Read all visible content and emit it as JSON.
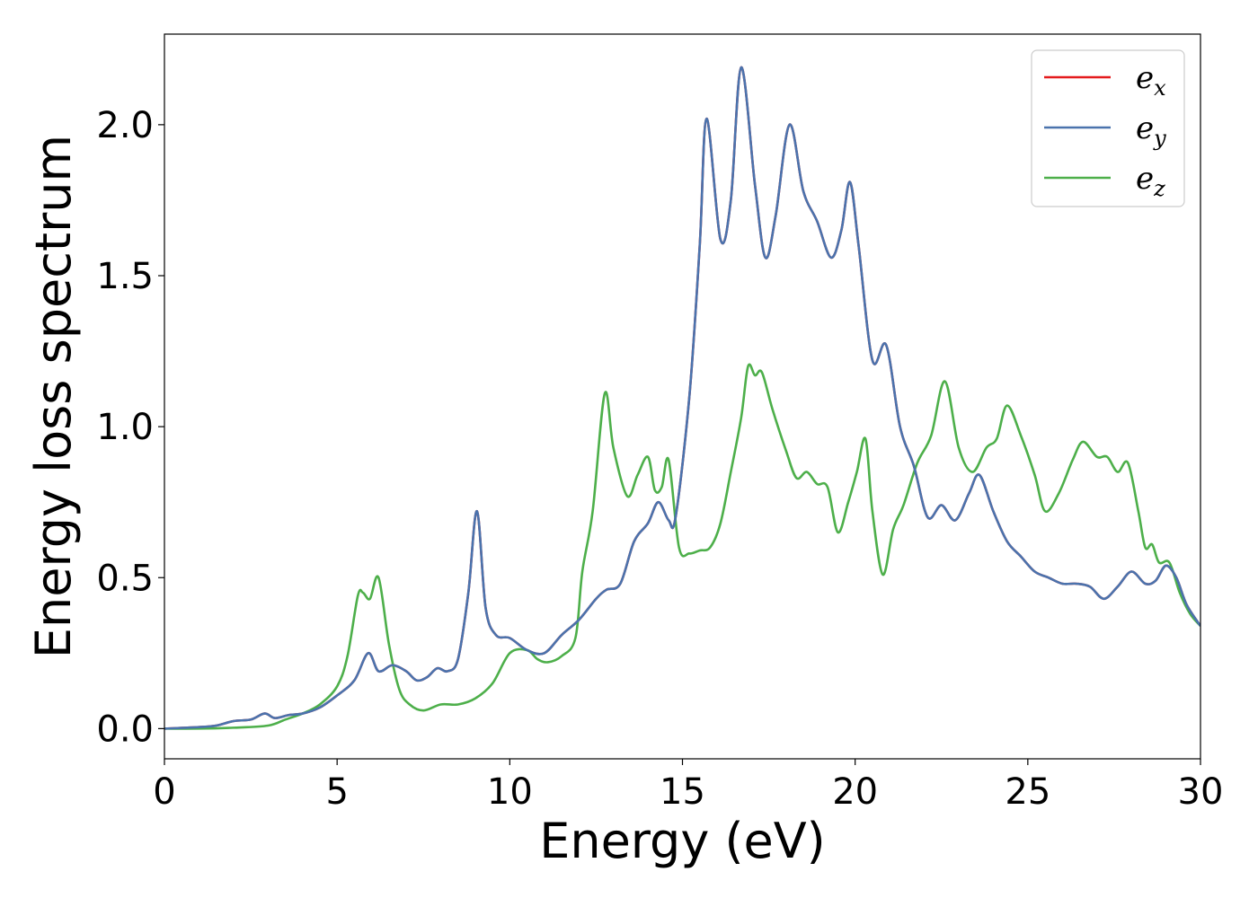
{
  "chart_data": {
    "type": "line",
    "xlabel": "Energy (eV)",
    "ylabel": "Energy loss spectrum",
    "xlim": [
      0,
      30
    ],
    "ylim": [
      -0.1,
      2.3
    ],
    "x_ticks": [
      "0",
      "5",
      "10",
      "15",
      "20",
      "25",
      "30"
    ],
    "y_ticks": [
      "0.0",
      "0.5",
      "1.0",
      "1.5",
      "2.0"
    ],
    "grid": false,
    "legend_position": "top-right",
    "series": [
      {
        "name": "e_x",
        "label_base": "e",
        "label_sub": "x",
        "color": "#e41a1c",
        "x": [
          0,
          1,
          1.5,
          2,
          2.5,
          2.9,
          3.2,
          3.6,
          4,
          4.5,
          5,
          5.5,
          5.9,
          6.2,
          6.6,
          7,
          7.3,
          7.6,
          7.9,
          8.2,
          8.5,
          8.8,
          9.05,
          9.3,
          9.6,
          10,
          10.5,
          11,
          11.5,
          12,
          12.5,
          12.8,
          13.2,
          13.6,
          14,
          14.3,
          14.6,
          14.8,
          15.2,
          15.5,
          15.7,
          16.1,
          16.4,
          16.7,
          17.1,
          17.4,
          17.7,
          18.1,
          18.5,
          18.9,
          19.3,
          19.6,
          19.85,
          20.1,
          20.5,
          20.9,
          21.3,
          21.7,
          22.1,
          22.5,
          22.9,
          23.3,
          23.6,
          24,
          24.4,
          24.8,
          25.2,
          25.6,
          26,
          26.4,
          26.8,
          27.2,
          27.6,
          28,
          28.4,
          28.7,
          29,
          29.3,
          29.6,
          30
        ],
        "values": [
          0,
          0.005,
          0.01,
          0.025,
          0.03,
          0.05,
          0.035,
          0.045,
          0.05,
          0.07,
          0.11,
          0.16,
          0.25,
          0.19,
          0.21,
          0.19,
          0.16,
          0.17,
          0.2,
          0.19,
          0.23,
          0.45,
          0.72,
          0.4,
          0.31,
          0.3,
          0.26,
          0.25,
          0.31,
          0.36,
          0.43,
          0.46,
          0.48,
          0.62,
          0.68,
          0.75,
          0.69,
          0.7,
          1.1,
          1.6,
          2.02,
          1.62,
          1.75,
          2.19,
          1.8,
          1.56,
          1.7,
          2.0,
          1.78,
          1.68,
          1.56,
          1.65,
          1.81,
          1.6,
          1.22,
          1.27,
          1.0,
          0.87,
          0.7,
          0.74,
          0.69,
          0.78,
          0.84,
          0.72,
          0.62,
          0.57,
          0.52,
          0.5,
          0.48,
          0.48,
          0.47,
          0.43,
          0.47,
          0.52,
          0.48,
          0.49,
          0.54,
          0.5,
          0.41,
          0.34
        ]
      },
      {
        "name": "e_y",
        "label_base": "e",
        "label_sub": "y",
        "color": "#4a73ad",
        "x": [
          0,
          1,
          1.5,
          2,
          2.5,
          2.9,
          3.2,
          3.6,
          4,
          4.5,
          5,
          5.5,
          5.9,
          6.2,
          6.6,
          7,
          7.3,
          7.6,
          7.9,
          8.2,
          8.5,
          8.8,
          9.05,
          9.3,
          9.6,
          10,
          10.5,
          11,
          11.5,
          12,
          12.5,
          12.8,
          13.2,
          13.6,
          14,
          14.3,
          14.6,
          14.8,
          15.2,
          15.5,
          15.7,
          16.1,
          16.4,
          16.7,
          17.1,
          17.4,
          17.7,
          18.1,
          18.5,
          18.9,
          19.3,
          19.6,
          19.85,
          20.1,
          20.5,
          20.9,
          21.3,
          21.7,
          22.1,
          22.5,
          22.9,
          23.3,
          23.6,
          24,
          24.4,
          24.8,
          25.2,
          25.6,
          26,
          26.4,
          26.8,
          27.2,
          27.6,
          28,
          28.4,
          28.7,
          29,
          29.3,
          29.6,
          30
        ],
        "values": [
          0,
          0.005,
          0.01,
          0.025,
          0.03,
          0.05,
          0.035,
          0.045,
          0.05,
          0.07,
          0.11,
          0.16,
          0.25,
          0.19,
          0.21,
          0.19,
          0.16,
          0.17,
          0.2,
          0.19,
          0.23,
          0.45,
          0.72,
          0.4,
          0.31,
          0.3,
          0.26,
          0.25,
          0.31,
          0.36,
          0.43,
          0.46,
          0.48,
          0.62,
          0.68,
          0.75,
          0.69,
          0.7,
          1.1,
          1.6,
          2.02,
          1.62,
          1.75,
          2.19,
          1.8,
          1.56,
          1.7,
          2.0,
          1.78,
          1.68,
          1.56,
          1.65,
          1.81,
          1.6,
          1.22,
          1.27,
          1.0,
          0.87,
          0.7,
          0.74,
          0.69,
          0.78,
          0.84,
          0.72,
          0.62,
          0.57,
          0.52,
          0.5,
          0.48,
          0.48,
          0.47,
          0.43,
          0.47,
          0.52,
          0.48,
          0.49,
          0.54,
          0.5,
          0.41,
          0.34
        ]
      },
      {
        "name": "e_z",
        "label_base": "e",
        "label_sub": "z",
        "color": "#4daf4a",
        "x": [
          0,
          1,
          2,
          3,
          3.5,
          4,
          4.5,
          5,
          5.3,
          5.6,
          5.75,
          5.95,
          6.2,
          6.5,
          6.8,
          7.1,
          7.5,
          8,
          8.5,
          9,
          9.5,
          10,
          10.5,
          10.8,
          11.1,
          11.5,
          11.9,
          12.1,
          12.4,
          12.75,
          13,
          13.4,
          13.7,
          14,
          14.2,
          14.4,
          14.6,
          14.9,
          15.2,
          15.5,
          15.8,
          16.1,
          16.4,
          16.7,
          16.9,
          17.1,
          17.3,
          17.6,
          18,
          18.3,
          18.6,
          18.9,
          19.2,
          19.5,
          19.8,
          20.05,
          20.3,
          20.5,
          20.8,
          21.1,
          21.4,
          21.8,
          22.2,
          22.6,
          23,
          23.4,
          23.8,
          24.1,
          24.4,
          24.8,
          25.2,
          25.5,
          25.9,
          26.3,
          26.6,
          27,
          27.3,
          27.6,
          27.9,
          28.2,
          28.4,
          28.6,
          28.8,
          29.1,
          29.4,
          29.7,
          30
        ],
        "values": [
          0,
          0.0,
          0.003,
          0.01,
          0.03,
          0.05,
          0.08,
          0.14,
          0.24,
          0.44,
          0.45,
          0.43,
          0.5,
          0.28,
          0.13,
          0.08,
          0.06,
          0.08,
          0.08,
          0.1,
          0.15,
          0.25,
          0.26,
          0.23,
          0.22,
          0.24,
          0.3,
          0.52,
          0.72,
          1.11,
          0.93,
          0.77,
          0.84,
          0.9,
          0.79,
          0.8,
          0.89,
          0.6,
          0.58,
          0.59,
          0.6,
          0.68,
          0.85,
          1.03,
          1.2,
          1.17,
          1.18,
          1.06,
          0.92,
          0.83,
          0.85,
          0.81,
          0.8,
          0.65,
          0.75,
          0.85,
          0.96,
          0.72,
          0.51,
          0.66,
          0.74,
          0.88,
          0.97,
          1.15,
          0.93,
          0.85,
          0.93,
          0.96,
          1.07,
          0.97,
          0.84,
          0.72,
          0.78,
          0.89,
          0.95,
          0.9,
          0.9,
          0.85,
          0.88,
          0.72,
          0.6,
          0.61,
          0.55,
          0.55,
          0.45,
          0.38,
          0.34
        ]
      }
    ]
  }
}
